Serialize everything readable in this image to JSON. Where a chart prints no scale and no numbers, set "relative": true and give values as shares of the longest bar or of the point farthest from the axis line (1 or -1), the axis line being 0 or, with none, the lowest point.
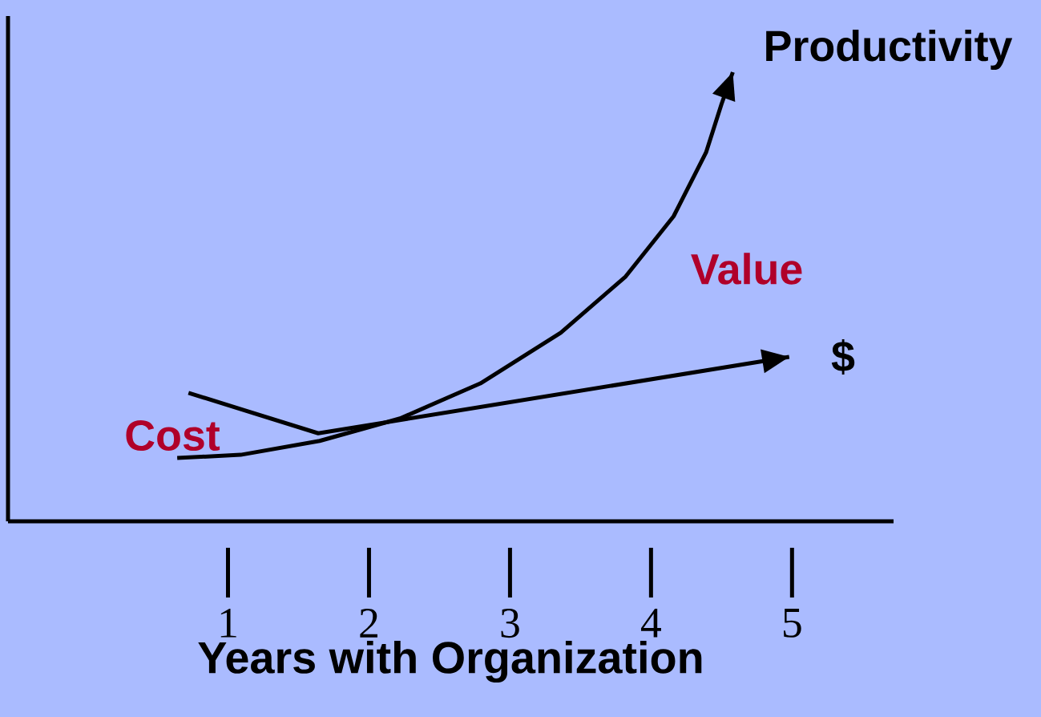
{
  "chart_data": {
    "type": "line",
    "relative": true,
    "xlabel": "Years with Organization",
    "xlim": [
      -0.56,
      5.72
    ],
    "xticks": [
      {
        "value": 1,
        "label": "1"
      },
      {
        "value": 2,
        "label": "2"
      },
      {
        "value": 3,
        "label": "3"
      },
      {
        "value": 4,
        "label": "4"
      },
      {
        "value": 5,
        "label": "5"
      }
    ],
    "series": [
      {
        "color": "#000000",
        "x": [
          0.64,
          1.09,
          1.65,
          2.22,
          2.79,
          3.36,
          3.82,
          4.16,
          4.39,
          4.5,
          4.58
        ],
        "values": [
          0.141,
          0.148,
          0.179,
          0.229,
          0.307,
          0.42,
          0.545,
          0.679,
          0.821,
          0.929,
          1.0
        ]
      },
      {
        "color": "#000000",
        "x": [
          0.72,
          1.64,
          4.98
        ],
        "values": [
          0.286,
          0.196,
          0.366
        ]
      }
    ],
    "annotations": [
      "Productivity",
      "Value",
      "$",
      "Cost"
    ]
  }
}
